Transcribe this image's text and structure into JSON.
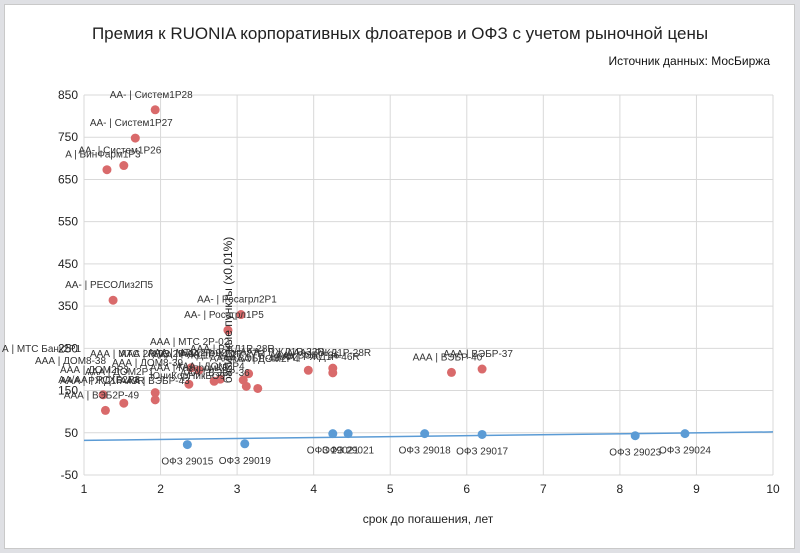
{
  "chart_data": {
    "type": "scatter",
    "title": "Премия к RUONIA корпоративных флоатеров и ОФЗ с учетом рыночной цены",
    "source": "Источник данных: МосБиржа",
    "xlabel": "срок до погашения, лет",
    "ylabel": "базисные пункты (х0,01%)",
    "xlim": [
      1,
      10
    ],
    "ylim": [
      -50,
      850
    ],
    "xticks": [
      "1",
      "2",
      "3",
      "4",
      "5",
      "6",
      "7",
      "8",
      "9",
      "10"
    ],
    "yticks": [
      "-50",
      "50",
      "150",
      "250",
      "350",
      "450",
      "550",
      "650",
      "750",
      "850"
    ],
    "grid": true,
    "colors": {
      "corporate": "#d96a6b",
      "ofz": "#5b9bd5",
      "trend": "#5b9bd5"
    },
    "trendline": {
      "x": [
        1,
        10
      ],
      "y": [
        32,
        52
      ]
    },
    "series": [
      {
        "key": "corporate",
        "points": [
          {
            "x": 1.93,
            "y": 815,
            "label": "АА- | Систем1Р28"
          },
          {
            "x": 1.67,
            "y": 748,
            "label": "АА- | Систем1Р27"
          },
          {
            "x": 1.3,
            "y": 673,
            "label": "A | БинФарм1Р3"
          },
          {
            "x": 1.52,
            "y": 683,
            "label": "АА- | Систем1Р26"
          },
          {
            "x": 1.38,
            "y": 364,
            "label": "АА- | РЕСОЛиз2П5"
          },
          {
            "x": 3.05,
            "y": 330,
            "label": "АА- | Росагрл2Р1"
          },
          {
            "x": 2.88,
            "y": 293,
            "label": "АА- | Росагрл1Р5"
          },
          {
            "x": 2.4,
            "y": 204,
            "label": "ААА | МТС 2Р-02"
          },
          {
            "x": 3.93,
            "y": 198,
            "label": "ААА | ВЭБР-36"
          },
          {
            "x": 4.25,
            "y": 203,
            "label": "ААА | РЖД1Р-28R"
          },
          {
            "x": 4.25,
            "y": 192,
            "label": ""
          },
          {
            "x": 5.8,
            "y": 193,
            "label": "ААА | ВЭБР-40"
          },
          {
            "x": 6.2,
            "y": 201,
            "label": "ААА | ВЭБР-37"
          },
          {
            "x": 2.5,
            "y": 198,
            "label": "ААА | РЖД1Р-27R"
          },
          {
            "x": 3.15,
            "y": 190,
            "label": "ААА | ВЭБР-43"
          },
          {
            "x": 2.7,
            "y": 172,
            "label": "ААА | ДОМ2Р4"
          },
          {
            "x": 2.78,
            "y": 177,
            "label": ""
          },
          {
            "x": 3.08,
            "y": 175,
            "label": ""
          },
          {
            "x": 2.37,
            "y": 165,
            "label": ""
          },
          {
            "x": 3.12,
            "y": 160,
            "label": ""
          },
          {
            "x": 3.27,
            "y": 155,
            "label": ""
          },
          {
            "x": 1.93,
            "y": 145,
            "label": ""
          },
          {
            "x": 1.93,
            "y": 128,
            "label": ""
          },
          {
            "x": 1.25,
            "y": 140,
            "label": "АА/АА | РСХБ2Р3"
          },
          {
            "x": 1.52,
            "y": 120,
            "label": ""
          },
          {
            "x": 1.28,
            "y": 103,
            "label": "ААА | ВЭБ2Р-49"
          }
        ]
      },
      {
        "key": "ofz",
        "points": [
          {
            "x": 2.35,
            "y": 22,
            "label": "ОФЗ 29015"
          },
          {
            "x": 3.1,
            "y": 24,
            "label": "ОФЗ 29019"
          },
          {
            "x": 4.25,
            "y": 48,
            "label": "ОФЗ 29021"
          },
          {
            "x": 4.45,
            "y": 48,
            "label": "ОФЗ 29021"
          },
          {
            "x": 5.45,
            "y": 48,
            "label": "ОФЗ 29018"
          },
          {
            "x": 6.2,
            "y": 46,
            "label": "ОФЗ 29017"
          },
          {
            "x": 8.2,
            "y": 43,
            "label": "ОФЗ 29023"
          },
          {
            "x": 8.85,
            "y": 48,
            "label": "ОФЗ 29024"
          }
        ]
      }
    ],
    "crowded_labels": [
      "ААА | МТС 2Р-02",
      "А | МТС Банк2Р1",
      "ААА | МТС 2Р-03",
      "ААА | МТС 2Р-04",
      "ААА | РЖД1Р-27R",
      "ААА | РЖД1Р-32R",
      "ААА | РЖД1Р-46R",
      "ААА | ДОМ8-38",
      "ААА | ДОМ8-39",
      "ААА | ГазпромКБ",
      "ААА | ДОМ2Р4",
      "ААА | ДОМ2Р3",
      "ААА | ДОМ2Р1",
      "ААА | ВЭБР-43",
      "ААА | ВЭБР-36",
      "ЮниКорНикБО9",
      "ААА | РЖД1Р-49R",
      "ААА | РЖД1Р-28R"
    ]
  }
}
